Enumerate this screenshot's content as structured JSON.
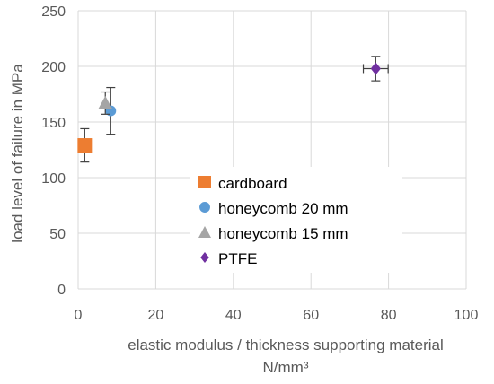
{
  "chart_data": {
    "type": "scatter",
    "title": "",
    "xlabel": "elastic modulus / thickness supporting material",
    "xlabel_unit": "N/mm³",
    "ylabel": "load level of failure in MPa",
    "xlim": [
      0,
      100
    ],
    "ylim": [
      0,
      250
    ],
    "xticks": [
      "0",
      "20",
      "40",
      "60",
      "80",
      "100"
    ],
    "yticks": [
      "0",
      "50",
      "100",
      "150",
      "200",
      "250"
    ],
    "grid": true,
    "legend_position": "center",
    "series": [
      {
        "name": "cardboard",
        "marker": "square",
        "color": "#ED7D31",
        "points": [
          {
            "x": 1.7,
            "y": 129,
            "y_err": 15,
            "x_err": 0
          }
        ]
      },
      {
        "name": "honeycomb 20 mm",
        "marker": "circle",
        "color": "#5B9BD5",
        "points": [
          {
            "x": 8.4,
            "y": 160,
            "y_err": 21,
            "x_err": 0
          }
        ]
      },
      {
        "name": "honeycomb 15 mm",
        "marker": "triangle",
        "color": "#A5A5A5",
        "points": [
          {
            "x": 7.0,
            "y": 167,
            "y_err": 10,
            "x_err": 0
          }
        ]
      },
      {
        "name": "PTFE",
        "marker": "diamond",
        "color": "#7030A0",
        "points": [
          {
            "x": 76.7,
            "y": 198,
            "y_err": 11,
            "x_err": 3.2
          }
        ]
      }
    ]
  }
}
